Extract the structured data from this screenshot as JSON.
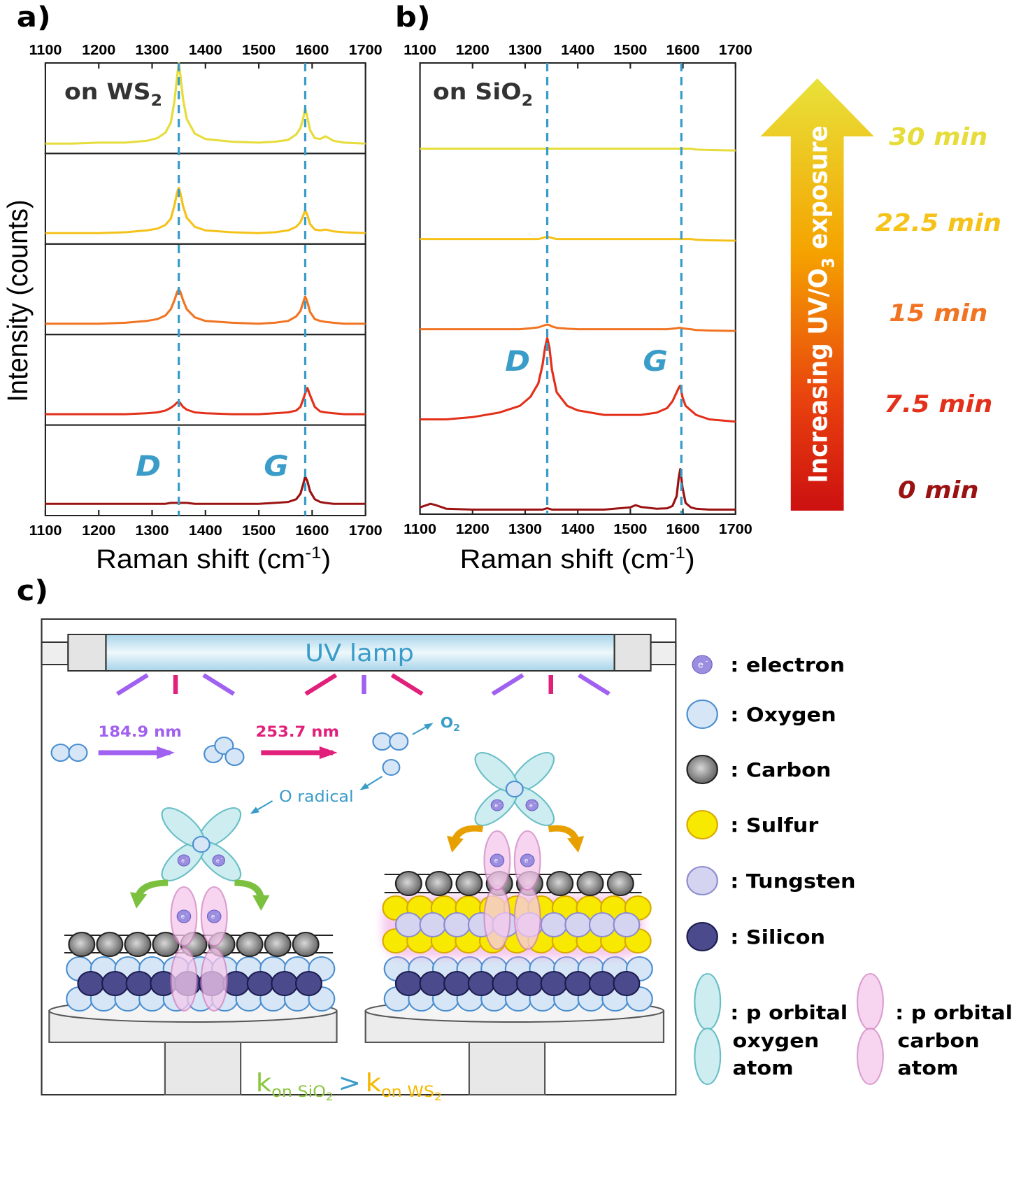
{
  "panel_labels": [
    "a)",
    "b)",
    "c)"
  ],
  "chart_data": [
    {
      "type": "line",
      "layout": "stacked-boxes",
      "label_parts": [
        "on WS",
        "2"
      ],
      "y_label": "Intensity (counts)",
      "x_label_parts": [
        "Raman shift (cm",
        "-1",
        ")"
      ],
      "x": [
        1100,
        1150,
        1200,
        1250,
        1290,
        1310,
        1325,
        1335,
        1342,
        1347,
        1350,
        1353,
        1358,
        1365,
        1380,
        1400,
        1450,
        1500,
        1530,
        1555,
        1570,
        1578,
        1583,
        1587,
        1591,
        1596,
        1605,
        1615,
        1625,
        1640,
        1660,
        1700
      ],
      "xlim": [
        1100,
        1700
      ],
      "xticks": [
        1100,
        1200,
        1300,
        1400,
        1500,
        1600,
        1700
      ],
      "ylim": [
        0,
        100
      ],
      "vlines": [
        1350,
        1587
      ],
      "peak_labels": [
        "D",
        "G"
      ],
      "series": [
        {
          "color": "#e6dc3a",
          "values": [
            11,
            11,
            12,
            12,
            14,
            17,
            23,
            34,
            58,
            85,
            100,
            86,
            60,
            38,
            22,
            16,
            13,
            12,
            13,
            15,
            21,
            28,
            38,
            50,
            40,
            26,
            17,
            16,
            19,
            14,
            12,
            11
          ]
        },
        {
          "color": "#f5c21a",
          "values": [
            12,
            12,
            12,
            13,
            15,
            17,
            21,
            28,
            43,
            57,
            62,
            56,
            42,
            29,
            19,
            15,
            13,
            12,
            13,
            15,
            19,
            24,
            31,
            37,
            32,
            22,
            16,
            15,
            16,
            14,
            13,
            12
          ]
        },
        {
          "color": "#f07422",
          "values": [
            12,
            12,
            12,
            13,
            15,
            17,
            21,
            28,
            38,
            47,
            50,
            47,
            38,
            28,
            19,
            15,
            13,
            12,
            13,
            15,
            20,
            26,
            35,
            42,
            36,
            25,
            17,
            15,
            14,
            13,
            12,
            12
          ]
        },
        {
          "color": "#e2301a",
          "values": [
            12,
            12,
            12,
            12,
            13,
            14,
            16,
            19,
            22,
            25,
            26,
            24,
            20,
            17,
            14,
            13,
            12,
            12,
            13,
            14,
            16,
            20,
            28,
            35,
            41,
            33,
            20,
            15,
            14,
            13,
            12,
            12
          ]
        },
        {
          "color": "#9a1212",
          "values": [
            13,
            13,
            13,
            13,
            13,
            13,
            13,
            14,
            14,
            14,
            14,
            14,
            14,
            14,
            13,
            13,
            13,
            13,
            14,
            15,
            18,
            24,
            34,
            43,
            38,
            27,
            18,
            15,
            14,
            13,
            13,
            13
          ]
        }
      ]
    },
    {
      "type": "line",
      "layout": "single-box",
      "label_parts": [
        "on SiO",
        "2"
      ],
      "x_label_parts": [
        "Raman shift (cm",
        "-1",
        ")"
      ],
      "x": [
        1100,
        1120,
        1130,
        1150,
        1200,
        1250,
        1290,
        1310,
        1325,
        1333,
        1338,
        1342,
        1346,
        1351,
        1360,
        1380,
        1400,
        1450,
        1500,
        1510,
        1520,
        1550,
        1570,
        1580,
        1588,
        1592,
        1595,
        1599,
        1605,
        1615,
        1625,
        1650,
        1700
      ],
      "xlim": [
        1100,
        1700
      ],
      "xticks": [
        1100,
        1200,
        1300,
        1400,
        1500,
        1600,
        1700
      ],
      "ylim": [
        0,
        100
      ],
      "vlines": [
        1342,
        1597
      ],
      "peak_labels": [
        "D",
        "G"
      ],
      "series": [
        {
          "name": "30 min",
          "color": "#e6dc3a",
          "values": [
            81,
            81,
            81,
            81,
            81,
            81,
            81,
            81,
            81,
            81,
            81,
            81,
            81,
            81,
            81,
            81,
            81,
            81,
            81,
            81,
            81,
            81,
            81,
            81,
            81,
            81,
            81,
            81,
            81,
            81,
            80.8,
            80.7,
            80.6
          ]
        },
        {
          "name": "22.5 min",
          "color": "#f5c21a",
          "values": [
            61,
            61,
            61,
            61,
            61,
            61,
            61,
            61,
            61,
            61.2,
            61.4,
            61.5,
            61.4,
            61.2,
            61,
            61,
            61,
            61,
            61,
            61,
            61,
            61,
            61,
            61,
            61,
            61,
            61,
            61,
            61,
            61,
            60.8,
            60.7,
            60.6
          ]
        },
        {
          "name": "15 min",
          "color": "#f07422",
          "values": [
            41,
            41,
            41,
            41,
            41,
            41,
            41,
            41.2,
            41.4,
            41.7,
            41.9,
            42,
            41.9,
            41.6,
            41.3,
            41.1,
            41,
            41,
            41,
            41,
            41,
            41,
            41,
            41.1,
            41.2,
            41.3,
            41.3,
            41.2,
            41.1,
            41,
            40.8,
            40.7,
            40.6
          ]
        },
        {
          "name": "7.5 min",
          "color": "#e2301a",
          "values": [
            21,
            21,
            21,
            21,
            21.5,
            22.5,
            24,
            26,
            29,
            33,
            37,
            39,
            37,
            32,
            27,
            24,
            23,
            22,
            22,
            22,
            22,
            22.5,
            23.5,
            25,
            27,
            28,
            28.5,
            26,
            24,
            23,
            22,
            21,
            20.5
          ]
        },
        {
          "name": "0 min",
          "color": "#9a1212",
          "values": [
            1.5,
            2.3,
            2,
            1.2,
            1,
            1,
            1,
            1,
            1,
            1,
            1.2,
            1.3,
            1.2,
            1,
            1,
            1,
            1,
            1,
            1.5,
            2,
            1.6,
            1.2,
            1.3,
            1.8,
            4,
            8,
            10,
            6,
            2.5,
            1.5,
            1.2,
            1,
            1
          ]
        }
      ]
    }
  ],
  "exposure_arrow": {
    "label_parts": [
      "Increasing UV/O",
      "3",
      " exposure"
    ]
  },
  "diagram": {
    "lamp_label": "UV lamp",
    "wavelengths": [
      "184.9 nm",
      "253.7 nm"
    ],
    "o2_parts": [
      "O",
      "2"
    ],
    "o_radical": "O radical",
    "electron_symbol": "e",
    "electron_charge": "-",
    "legend": [
      ": electron",
      ": Oxygen",
      ": Carbon",
      ": Sulfur",
      ": Tungsten",
      ": Silicon"
    ],
    "orbital_legend": [
      [
        ": p orbital",
        "oxygen",
        "atom"
      ],
      [
        ": p orbital",
        "carbon",
        "atom"
      ]
    ],
    "rate_parts": [
      "k",
      "on SiO",
      "2",
      ">",
      "k",
      "on WS",
      "2"
    ]
  }
}
